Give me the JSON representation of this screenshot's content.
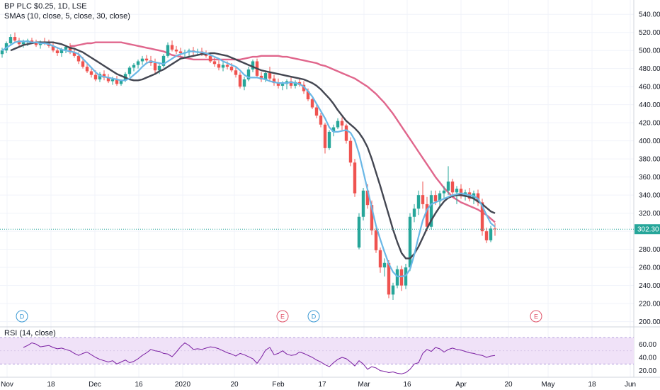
{
  "header": {
    "title": "BP PLC $0.25, 1D, LSE",
    "indicator": "SMAs (10, close, 5, close, 30, close)"
  },
  "rsi_panel": {
    "label": "RSI (14, close)"
  },
  "last_price_label": "302.30",
  "colors": {
    "up": "#26a69a",
    "down": "#ef5350",
    "sma10": "#434651",
    "sma5": "#6ab7e6",
    "sma30": "#e0668c",
    "rsi_line": "#7b1fa2",
    "rsi_band": "#f0e2f8",
    "price_line": "#26a69a"
  },
  "event_markers": [
    {
      "letter": "D",
      "x_date": "2019-11-11",
      "color": "#3d9ad4"
    },
    {
      "letter": "E",
      "x_date": "2020-02-04",
      "color": "#e0556a"
    },
    {
      "letter": "D",
      "x_date": "2020-02-13",
      "color": "#3d9ad4"
    },
    {
      "letter": "E",
      "x_date": "2020-04-28",
      "color": "#e0556a"
    }
  ],
  "chart_data": {
    "type": "candlestick",
    "price_axis": {
      "ticks": [
        "540.00",
        "520.00",
        "500.00",
        "480.00",
        "460.00",
        "440.00",
        "420.00",
        "400.00",
        "380.00",
        "360.00",
        "340.00",
        "320.00",
        "300.00",
        "280.00",
        "260.00",
        "240.00",
        "220.00",
        "200.00"
      ],
      "range": [
        195,
        548
      ]
    },
    "rsi_axis": {
      "ticks": [
        "60.00",
        "40.00",
        "20.00"
      ],
      "range": [
        10,
        85
      ],
      "band": [
        30,
        70
      ]
    },
    "x_axis": {
      "labels": [
        "Nov",
        "18",
        "Dec",
        "16",
        "2020",
        "20",
        "Feb",
        "17",
        "Mar",
        "16",
        "Apr",
        "20",
        "May",
        "18",
        "Jun"
      ]
    },
    "candles": [
      {
        "o": 496,
        "h": 503,
        "l": 492,
        "c": 500
      },
      {
        "o": 500,
        "h": 510,
        "l": 497,
        "c": 508
      },
      {
        "o": 508,
        "h": 518,
        "l": 505,
        "c": 515
      },
      {
        "o": 515,
        "h": 520,
        "l": 509,
        "c": 511
      },
      {
        "o": 511,
        "h": 514,
        "l": 505,
        "c": 507
      },
      {
        "o": 507,
        "h": 512,
        "l": 503,
        "c": 509
      },
      {
        "o": 509,
        "h": 513,
        "l": 505,
        "c": 511
      },
      {
        "o": 511,
        "h": 514,
        "l": 507,
        "c": 508
      },
      {
        "o": 508,
        "h": 512,
        "l": 504,
        "c": 506
      },
      {
        "o": 506,
        "h": 511,
        "l": 502,
        "c": 510
      },
      {
        "o": 510,
        "h": 514,
        "l": 506,
        "c": 508
      },
      {
        "o": 508,
        "h": 512,
        "l": 503,
        "c": 505
      },
      {
        "o": 505,
        "h": 509,
        "l": 498,
        "c": 500
      },
      {
        "o": 500,
        "h": 504,
        "l": 494,
        "c": 497
      },
      {
        "o": 497,
        "h": 503,
        "l": 493,
        "c": 501
      },
      {
        "o": 501,
        "h": 506,
        "l": 497,
        "c": 504
      },
      {
        "o": 504,
        "h": 508,
        "l": 496,
        "c": 498
      },
      {
        "o": 498,
        "h": 502,
        "l": 492,
        "c": 494
      },
      {
        "o": 494,
        "h": 498,
        "l": 485,
        "c": 488
      },
      {
        "o": 488,
        "h": 493,
        "l": 480,
        "c": 482
      },
      {
        "o": 482,
        "h": 487,
        "l": 475,
        "c": 477
      },
      {
        "o": 477,
        "h": 481,
        "l": 470,
        "c": 473
      },
      {
        "o": 473,
        "h": 478,
        "l": 466,
        "c": 468
      },
      {
        "o": 468,
        "h": 476,
        "l": 465,
        "c": 474
      },
      {
        "o": 474,
        "h": 478,
        "l": 467,
        "c": 470
      },
      {
        "o": 470,
        "h": 474,
        "l": 464,
        "c": 466
      },
      {
        "o": 466,
        "h": 471,
        "l": 462,
        "c": 468
      },
      {
        "o": 468,
        "h": 472,
        "l": 461,
        "c": 463
      },
      {
        "o": 463,
        "h": 468,
        "l": 461,
        "c": 467
      },
      {
        "o": 467,
        "h": 476,
        "l": 465,
        "c": 474
      },
      {
        "o": 474,
        "h": 483,
        "l": 471,
        "c": 481
      },
      {
        "o": 481,
        "h": 486,
        "l": 477,
        "c": 484
      },
      {
        "o": 484,
        "h": 490,
        "l": 480,
        "c": 488
      },
      {
        "o": 488,
        "h": 494,
        "l": 484,
        "c": 491
      },
      {
        "o": 491,
        "h": 495,
        "l": 486,
        "c": 489
      },
      {
        "o": 489,
        "h": 494,
        "l": 483,
        "c": 486
      },
      {
        "o": 486,
        "h": 491,
        "l": 474,
        "c": 478
      },
      {
        "o": 478,
        "h": 485,
        "l": 474,
        "c": 483
      },
      {
        "o": 483,
        "h": 496,
        "l": 481,
        "c": 494
      },
      {
        "o": 494,
        "h": 509,
        "l": 492,
        "c": 506
      },
      {
        "o": 506,
        "h": 511,
        "l": 499,
        "c": 501
      },
      {
        "o": 501,
        "h": 505,
        "l": 496,
        "c": 499
      },
      {
        "o": 499,
        "h": 503,
        "l": 494,
        "c": 497
      },
      {
        "o": 497,
        "h": 501,
        "l": 493,
        "c": 498
      },
      {
        "o": 498,
        "h": 502,
        "l": 494,
        "c": 500
      },
      {
        "o": 500,
        "h": 504,
        "l": 495,
        "c": 498
      },
      {
        "o": 498,
        "h": 502,
        "l": 494,
        "c": 499
      },
      {
        "o": 499,
        "h": 503,
        "l": 494,
        "c": 496
      },
      {
        "o": 496,
        "h": 500,
        "l": 492,
        "c": 494
      },
      {
        "o": 494,
        "h": 497,
        "l": 486,
        "c": 488
      },
      {
        "o": 488,
        "h": 492,
        "l": 482,
        "c": 485
      },
      {
        "o": 485,
        "h": 489,
        "l": 478,
        "c": 481
      },
      {
        "o": 481,
        "h": 487,
        "l": 477,
        "c": 484
      },
      {
        "o": 484,
        "h": 488,
        "l": 479,
        "c": 482
      },
      {
        "o": 482,
        "h": 486,
        "l": 476,
        "c": 478
      },
      {
        "o": 478,
        "h": 482,
        "l": 470,
        "c": 473
      },
      {
        "o": 473,
        "h": 476,
        "l": 458,
        "c": 460
      },
      {
        "o": 460,
        "h": 471,
        "l": 456,
        "c": 468
      },
      {
        "o": 468,
        "h": 482,
        "l": 466,
        "c": 479
      },
      {
        "o": 479,
        "h": 490,
        "l": 476,
        "c": 488
      },
      {
        "o": 488,
        "h": 491,
        "l": 470,
        "c": 472
      },
      {
        "o": 472,
        "h": 476,
        "l": 465,
        "c": 468
      },
      {
        "o": 468,
        "h": 478,
        "l": 465,
        "c": 475
      },
      {
        "o": 475,
        "h": 482,
        "l": 466,
        "c": 469
      },
      {
        "o": 469,
        "h": 473,
        "l": 461,
        "c": 464
      },
      {
        "o": 464,
        "h": 469,
        "l": 458,
        "c": 461
      },
      {
        "o": 461,
        "h": 466,
        "l": 456,
        "c": 463
      },
      {
        "o": 463,
        "h": 468,
        "l": 457,
        "c": 466
      },
      {
        "o": 466,
        "h": 470,
        "l": 458,
        "c": 461
      },
      {
        "o": 461,
        "h": 467,
        "l": 458,
        "c": 465
      },
      {
        "o": 465,
        "h": 469,
        "l": 460,
        "c": 462
      },
      {
        "o": 462,
        "h": 466,
        "l": 452,
        "c": 455
      },
      {
        "o": 455,
        "h": 458,
        "l": 444,
        "c": 446
      },
      {
        "o": 446,
        "h": 449,
        "l": 435,
        "c": 437
      },
      {
        "o": 437,
        "h": 440,
        "l": 425,
        "c": 428
      },
      {
        "o": 428,
        "h": 431,
        "l": 415,
        "c": 418
      },
      {
        "o": 418,
        "h": 420,
        "l": 386,
        "c": 392
      },
      {
        "o": 392,
        "h": 412,
        "l": 390,
        "c": 410
      },
      {
        "o": 410,
        "h": 418,
        "l": 405,
        "c": 415
      },
      {
        "o": 415,
        "h": 425,
        "l": 413,
        "c": 422
      },
      {
        "o": 422,
        "h": 426,
        "l": 412,
        "c": 417
      },
      {
        "o": 417,
        "h": 419,
        "l": 397,
        "c": 400
      },
      {
        "o": 400,
        "h": 404,
        "l": 372,
        "c": 376
      },
      {
        "o": 376,
        "h": 380,
        "l": 338,
        "c": 342
      },
      {
        "o": 282,
        "h": 320,
        "l": 280,
        "c": 316
      },
      {
        "o": 316,
        "h": 348,
        "l": 312,
        "c": 345
      },
      {
        "o": 345,
        "h": 352,
        "l": 325,
        "c": 329
      },
      {
        "o": 329,
        "h": 334,
        "l": 296,
        "c": 301
      },
      {
        "o": 301,
        "h": 304,
        "l": 276,
        "c": 279
      },
      {
        "o": 279,
        "h": 282,
        "l": 254,
        "c": 260
      },
      {
        "o": 260,
        "h": 270,
        "l": 250,
        "c": 265
      },
      {
        "o": 265,
        "h": 268,
        "l": 226,
        "c": 230
      },
      {
        "o": 230,
        "h": 243,
        "l": 224,
        "c": 240
      },
      {
        "o": 240,
        "h": 262,
        "l": 237,
        "c": 258
      },
      {
        "o": 258,
        "h": 262,
        "l": 234,
        "c": 240
      },
      {
        "o": 240,
        "h": 264,
        "l": 236,
        "c": 260
      },
      {
        "o": 260,
        "h": 320,
        "l": 256,
        "c": 316
      },
      {
        "o": 316,
        "h": 330,
        "l": 310,
        "c": 325
      },
      {
        "o": 325,
        "h": 345,
        "l": 318,
        "c": 340
      },
      {
        "o": 340,
        "h": 355,
        "l": 325,
        "c": 330
      },
      {
        "o": 330,
        "h": 338,
        "l": 300,
        "c": 305
      },
      {
        "o": 305,
        "h": 345,
        "l": 302,
        "c": 340
      },
      {
        "o": 340,
        "h": 345,
        "l": 329,
        "c": 333
      },
      {
        "o": 333,
        "h": 345,
        "l": 328,
        "c": 342
      },
      {
        "o": 342,
        "h": 350,
        "l": 335,
        "c": 345
      },
      {
        "o": 345,
        "h": 372,
        "l": 340,
        "c": 355
      },
      {
        "o": 355,
        "h": 358,
        "l": 340,
        "c": 343
      },
      {
        "o": 343,
        "h": 350,
        "l": 330,
        "c": 347
      },
      {
        "o": 347,
        "h": 352,
        "l": 336,
        "c": 339
      },
      {
        "o": 339,
        "h": 346,
        "l": 334,
        "c": 343
      },
      {
        "o": 343,
        "h": 348,
        "l": 333,
        "c": 336
      },
      {
        "o": 336,
        "h": 345,
        "l": 330,
        "c": 342
      },
      {
        "o": 342,
        "h": 346,
        "l": 328,
        "c": 332
      },
      {
        "o": 332,
        "h": 336,
        "l": 295,
        "c": 300
      },
      {
        "o": 300,
        "h": 304,
        "l": 287,
        "c": 290
      },
      {
        "o": 290,
        "h": 306,
        "l": 288,
        "c": 303
      },
      {
        "o": 303,
        "h": 309,
        "l": 295,
        "c": 302.3
      }
    ],
    "sma10": [
      500,
      502,
      504,
      506,
      507,
      508,
      509,
      509,
      509,
      509,
      509,
      508,
      507,
      505,
      503,
      502,
      500,
      498,
      495,
      492,
      489,
      486,
      483,
      480,
      477,
      474,
      472,
      470,
      468,
      467,
      467,
      468,
      470,
      472,
      474,
      477,
      479,
      482,
      485,
      488,
      491,
      492,
      493,
      494,
      495,
      496,
      496,
      497,
      497,
      496,
      495,
      494,
      492,
      490,
      488,
      486,
      484,
      482,
      480,
      478,
      477,
      476,
      475,
      474,
      473,
      472,
      471,
      470,
      469,
      468,
      466,
      464,
      461,
      457,
      452,
      447,
      441,
      434,
      428,
      422,
      418,
      414,
      409,
      402,
      393,
      380,
      365,
      350,
      334,
      318,
      302,
      288,
      276,
      270,
      270,
      275,
      283,
      293,
      303,
      312,
      320,
      327,
      333,
      337,
      339,
      340,
      340,
      339,
      338,
      336,
      333,
      330,
      326,
      322,
      320
    ],
    "sma5": [
      500,
      503,
      506,
      509,
      510,
      510,
      510,
      509,
      509,
      508,
      508,
      507,
      505,
      503,
      501,
      500,
      499,
      498,
      496,
      491,
      486,
      481,
      476,
      472,
      471,
      470,
      469,
      468,
      467,
      467,
      469,
      473,
      477,
      482,
      486,
      488,
      487,
      486,
      485,
      488,
      491,
      494,
      496,
      497,
      499,
      499,
      498,
      498,
      497,
      495,
      493,
      491,
      488,
      486,
      484,
      482,
      478,
      473,
      470,
      470,
      470,
      469,
      468,
      466,
      465,
      464,
      464,
      464,
      465,
      464,
      463,
      460,
      455,
      449,
      441,
      433,
      425,
      415,
      410,
      410,
      411,
      412,
      409,
      401,
      386,
      366,
      346,
      326,
      306,
      291,
      277,
      264,
      255,
      250,
      250,
      251,
      258,
      274,
      294,
      312,
      324,
      330,
      332,
      334,
      336,
      338,
      340,
      341,
      342,
      341,
      340,
      339,
      336,
      328,
      318,
      309,
      305
    ],
    "sma30": [
      505,
      505,
      506,
      507,
      508,
      508,
      509,
      509,
      509,
      509,
      509,
      509,
      509,
      508,
      507,
      506,
      505,
      504,
      503,
      502,
      501,
      500,
      499,
      497,
      495,
      494,
      493,
      492,
      491,
      490,
      490,
      490,
      490,
      490,
      490,
      490,
      490,
      490,
      490,
      490,
      490,
      491,
      492,
      493,
      493,
      494,
      494,
      494,
      494,
      494,
      493,
      493,
      492,
      491,
      490,
      489,
      488,
      487,
      486,
      484,
      483,
      481,
      479,
      477,
      475,
      473,
      471,
      469,
      466,
      463,
      460,
      456,
      452,
      447,
      442,
      436,
      430,
      423,
      416,
      409,
      402,
      395,
      388,
      381,
      374,
      367,
      360,
      354,
      348,
      343,
      338,
      335,
      332,
      330,
      328,
      326,
      324,
      321,
      318,
      314,
      310
    ],
    "rsi": [
      55,
      58,
      62,
      60,
      56,
      57,
      58,
      55,
      53,
      54,
      52,
      50,
      46,
      43,
      46,
      48,
      44,
      40,
      37,
      35,
      33,
      35,
      30,
      33,
      36,
      32,
      34,
      38,
      43,
      47,
      52,
      50,
      49,
      46,
      45,
      41,
      48,
      56,
      62,
      58,
      52,
      53,
      52,
      54,
      56,
      55,
      53,
      50,
      47,
      45,
      42,
      46,
      44,
      41,
      38,
      31,
      40,
      51,
      55,
      44,
      46,
      50,
      45,
      43,
      44,
      48,
      46,
      43,
      40,
      36,
      33,
      29,
      26,
      32,
      37,
      40,
      38,
      33,
      27,
      35,
      30,
      22,
      26,
      24,
      20,
      19,
      17,
      18,
      16,
      15,
      17,
      22,
      30,
      32,
      46,
      52,
      49,
      55,
      53,
      48,
      52,
      54,
      52,
      51,
      49,
      47,
      46,
      44,
      43,
      40,
      42,
      43
    ]
  }
}
